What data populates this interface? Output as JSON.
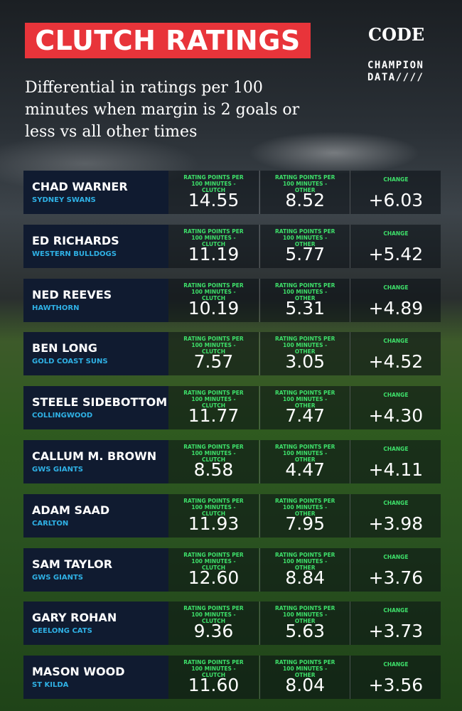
{
  "header": {
    "title": "CLUTCH RATINGS",
    "subtitle": "Differential in ratings per 100 minutes when margin is 2 goals or less vs all other times",
    "logo_code": "CODE",
    "logo_champion": "CHAMPION",
    "logo_data": "DATA////"
  },
  "table": {
    "columns": [
      "RATING POINTS PER 100 MINUTES - CLUTCH",
      "RATING POINTS PER 100 MINUTES - OTHER",
      "CHANGE"
    ],
    "rows": [
      {
        "name": "CHAD WARNER",
        "team": "SYDNEY SWANS",
        "clutch": "14.55",
        "other": "8.52",
        "change": "+6.03"
      },
      {
        "name": "ED RICHARDS",
        "team": "WESTERN BULLDOGS",
        "clutch": "11.19",
        "other": "5.77",
        "change": "+5.42"
      },
      {
        "name": "NED REEVES",
        "team": "HAWTHORN",
        "clutch": "10.19",
        "other": "5.31",
        "change": "+4.89"
      },
      {
        "name": "BEN LONG",
        "team": "GOLD COAST SUNS",
        "clutch": "7.57",
        "other": "3.05",
        "change": "+4.52"
      },
      {
        "name": "STEELE SIDEBOTTOM",
        "team": "COLLINGWOOD",
        "clutch": "11.77",
        "other": "7.47",
        "change": "+4.30"
      },
      {
        "name": "CALLUM M. BROWN",
        "team": "GWS GIANTS",
        "clutch": "8.58",
        "other": "4.47",
        "change": "+4.11"
      },
      {
        "name": "ADAM SAAD",
        "team": "CARLTON",
        "clutch": "11.93",
        "other": "7.95",
        "change": "+3.98"
      },
      {
        "name": "SAM TAYLOR",
        "team": "GWS GIANTS",
        "clutch": "12.60",
        "other": "8.84",
        "change": "+3.76"
      },
      {
        "name": "GARY ROHAN",
        "team": "GEELONG CATS",
        "clutch": "9.36",
        "other": "5.63",
        "change": "+3.73"
      },
      {
        "name": "MASON WOOD",
        "team": "ST KILDA",
        "clutch": "11.60",
        "other": "8.04",
        "change": "+3.56"
      }
    ]
  }
}
